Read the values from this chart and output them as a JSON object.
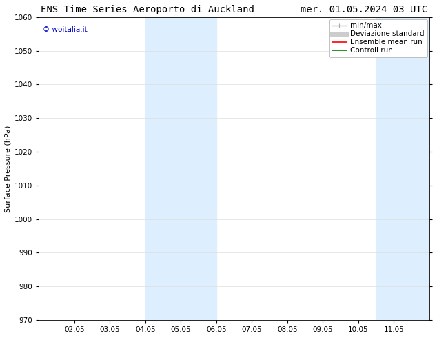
{
  "title_left": "ENS Time Series Aeroporto di Auckland",
  "title_right": "mer. 01.05.2024 03 UTC",
  "ylabel": "Surface Pressure (hPa)",
  "ylim": [
    970,
    1060
  ],
  "yticks": [
    970,
    980,
    990,
    1000,
    1010,
    1020,
    1030,
    1040,
    1050,
    1060
  ],
  "xlim": [
    0,
    11.0
  ],
  "xtick_labels": [
    "02.05",
    "03.05",
    "04.05",
    "05.05",
    "06.05",
    "07.05",
    "08.05",
    "09.05",
    "10.05",
    "11.05"
  ],
  "xtick_positions": [
    1,
    2,
    3,
    4,
    5,
    6,
    7,
    8,
    9,
    10
  ],
  "shaded_regions": [
    {
      "xmin": 3.0,
      "xmax": 4.0,
      "color": "#ddeeff"
    },
    {
      "xmin": 4.0,
      "xmax": 5.0,
      "color": "#ddeeff"
    },
    {
      "xmin": 9.5,
      "xmax": 10.5,
      "color": "#ddeeff"
    },
    {
      "xmin": 10.5,
      "xmax": 11.0,
      "color": "#ddeeff"
    }
  ],
  "watermark_text": "© woitalia.it",
  "watermark_color": "#0000cc",
  "legend_entries": [
    {
      "label": "min/max",
      "color": "#aaaaaa",
      "lw": 1.0
    },
    {
      "label": "Deviazione standard",
      "color": "#cccccc",
      "lw": 5
    },
    {
      "label": "Ensemble mean run",
      "color": "red",
      "lw": 1.2
    },
    {
      "label": "Controll run",
      "color": "green",
      "lw": 1.2
    }
  ],
  "background_color": "#ffffff",
  "grid_color": "#dddddd",
  "title_fontsize": 10,
  "label_fontsize": 8,
  "tick_fontsize": 7.5,
  "legend_fontsize": 7.5
}
